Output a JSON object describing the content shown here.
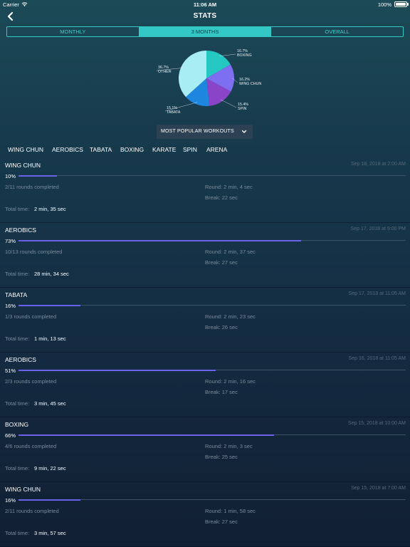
{
  "status_bar": {
    "carrier": "Carrier",
    "time": "11:06 AM",
    "battery": "100%"
  },
  "header": {
    "title": "STATS"
  },
  "segments": [
    {
      "label": "MONTHLY",
      "active": false
    },
    {
      "label": "3 MONTHS",
      "active": true
    },
    {
      "label": "OVERALL",
      "active": false
    }
  ],
  "chart_data": {
    "type": "pie",
    "slices": [
      {
        "label": "BOXING",
        "percent_label": "16.7%",
        "value": 16.7,
        "color": "#24c7c2"
      },
      {
        "label": "WING CHUN",
        "percent_label": "16.2%",
        "value": 16.2,
        "color": "#7d6ff0"
      },
      {
        "label": "SPIN",
        "percent_label": "15.4%",
        "value": 15.4,
        "color": "#8a44c8"
      },
      {
        "label": "TABATA",
        "percent_label": "15.1%",
        "value": 15.1,
        "color": "#1e86df"
      },
      {
        "label": "OTHER",
        "percent_label": "36.7%",
        "value": 36.7,
        "color": "#a8ecf4"
      }
    ]
  },
  "dropdown": {
    "label": "MOST POPULAR WORKOUTS",
    "icon": "chevron-down-icon"
  },
  "filters": [
    "WING CHUN",
    "AEROBICS",
    "TABATA",
    "BOXING",
    "KARATE",
    "SPIN",
    "ARENA"
  ],
  "total_label": "Total time:",
  "sessions": [
    {
      "name": "WING CHUN",
      "date": "Sep 18, 2018 at 2:00 AM",
      "percent": "10%",
      "progress": 10,
      "rounds": "2/11 rounds completed",
      "round": "Round: 2 min, 4 sec",
      "break": "Break: 22 sec",
      "total": "2 min, 35 sec"
    },
    {
      "name": "AEROBICS",
      "date": "Sep 17, 2018 at 9:00 PM",
      "percent": "73%",
      "progress": 73,
      "rounds": "10/13 rounds completed",
      "round": "Round: 2 min, 37 sec",
      "break": "Break: 27 sec",
      "total": "28 min, 34 sec"
    },
    {
      "name": "TABATA",
      "date": "Sep 17, 2018 at 11:05 AM",
      "percent": "16%",
      "progress": 16,
      "rounds": "1/3 rounds completed",
      "round": "Round: 2 min, 23 sec",
      "break": "Break: 26 sec",
      "total": "1 min, 13 sec"
    },
    {
      "name": "AEROBICS",
      "date": "Sep 16, 2018 at 11:05 AM",
      "percent": "51%",
      "progress": 51,
      "rounds": "2/3 rounds completed",
      "round": "Round: 2 min, 16 sec",
      "break": "Break: 17 sec",
      "total": "3 min, 45 sec"
    },
    {
      "name": "BOXING",
      "date": "Sep 15, 2018 at 10:00 AM",
      "percent": "66%",
      "progress": 66,
      "rounds": "4/6 rounds completed",
      "round": "Round: 2 min, 3 sec",
      "break": "Break: 25 sec",
      "total": "9 min, 22 sec"
    },
    {
      "name": "WING CHUN",
      "date": "Sep 15, 2018 at 7:00 AM",
      "percent": "16%",
      "progress": 16,
      "rounds": "2/11 rounds completed",
      "round": "Round: 1 min, 58 sec",
      "break": "Break: 27 sec",
      "total": "3 min, 57 sec"
    }
  ]
}
